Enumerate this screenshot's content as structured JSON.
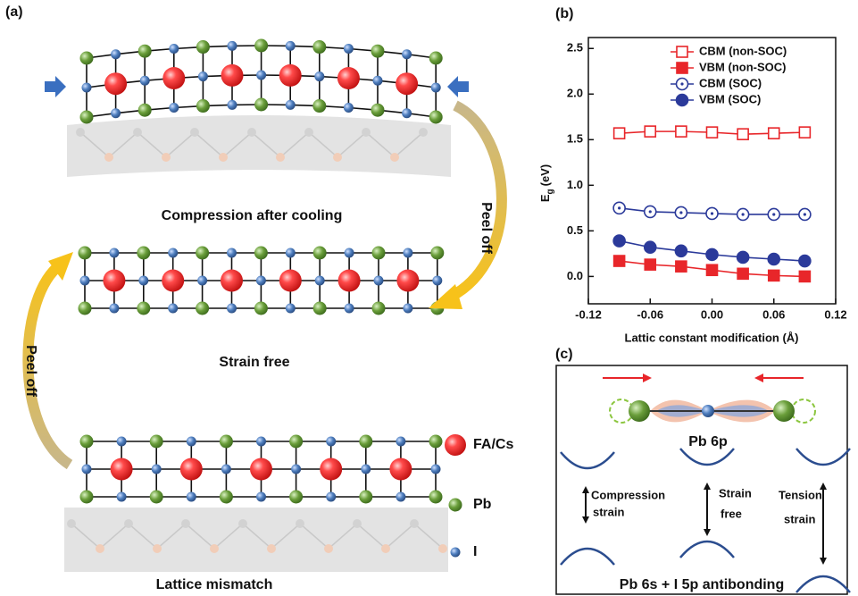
{
  "panel_labels": [
    "(a)",
    "(b)",
    "(c)"
  ],
  "panel_a": {
    "top_label": "Compression after cooling",
    "middle_label": "Strain free",
    "bottom_label": "Lattice mismatch",
    "peel_off_right": "Peel off",
    "peel_off_left": "Peel off",
    "legend": [
      "FA/Cs",
      "Pb",
      "I"
    ]
  },
  "chart_data": {
    "type": "line",
    "ylabel": {
      "main": "E",
      "sub": "g",
      "unit": "(eV)"
    },
    "xlabel": "Lattic constant modification (Å)",
    "x": [
      -0.09,
      -0.06,
      -0.03,
      0,
      0.03,
      0.06,
      0.09
    ],
    "series": [
      {
        "name": "CBM (non-SOC)",
        "color": "#e8262a",
        "marker": "square-open",
        "values": [
          1.57,
          1.59,
          1.59,
          1.58,
          1.56,
          1.57,
          1.58
        ]
      },
      {
        "name": "VBM (non-SOC)",
        "color": "#e8262a",
        "marker": "square",
        "values": [
          0.17,
          0.13,
          0.11,
          0.07,
          0.03,
          0.01,
          0.0
        ]
      },
      {
        "name": "CBM (SOC)",
        "color": "#2b3a9a",
        "marker": "circle-open",
        "values": [
          0.75,
          0.71,
          0.7,
          0.69,
          0.68,
          0.68,
          0.68
        ]
      },
      {
        "name": "VBM (SOC)",
        "color": "#2b3a9a",
        "marker": "circle",
        "values": [
          0.39,
          0.32,
          0.28,
          0.24,
          0.21,
          0.19,
          0.17
        ]
      }
    ],
    "xlim": [
      -0.12,
      0.12
    ],
    "xticks": [
      -0.12,
      -0.06,
      {
        "value": 0,
        "label": "0.00"
      },
      0.06,
      0.12
    ],
    "ylim": [
      -0.3,
      2.62
    ],
    "yticks": [
      {
        "value": 0,
        "label": "0.0"
      },
      0.5,
      {
        "value": 1,
        "label": "1.0"
      },
      1.5,
      {
        "value": 2,
        "label": "2.0"
      },
      2.5
    ],
    "legend": "upper right",
    "grid": false
  },
  "panel_c": {
    "orbital_label": "Pb 6p",
    "compression": [
      "Compression",
      "strain"
    ],
    "free": [
      "Strain",
      "free"
    ],
    "tension": [
      "Tension",
      "strain"
    ],
    "bottom_label": "Pb 6s + I 5p antibonding"
  }
}
